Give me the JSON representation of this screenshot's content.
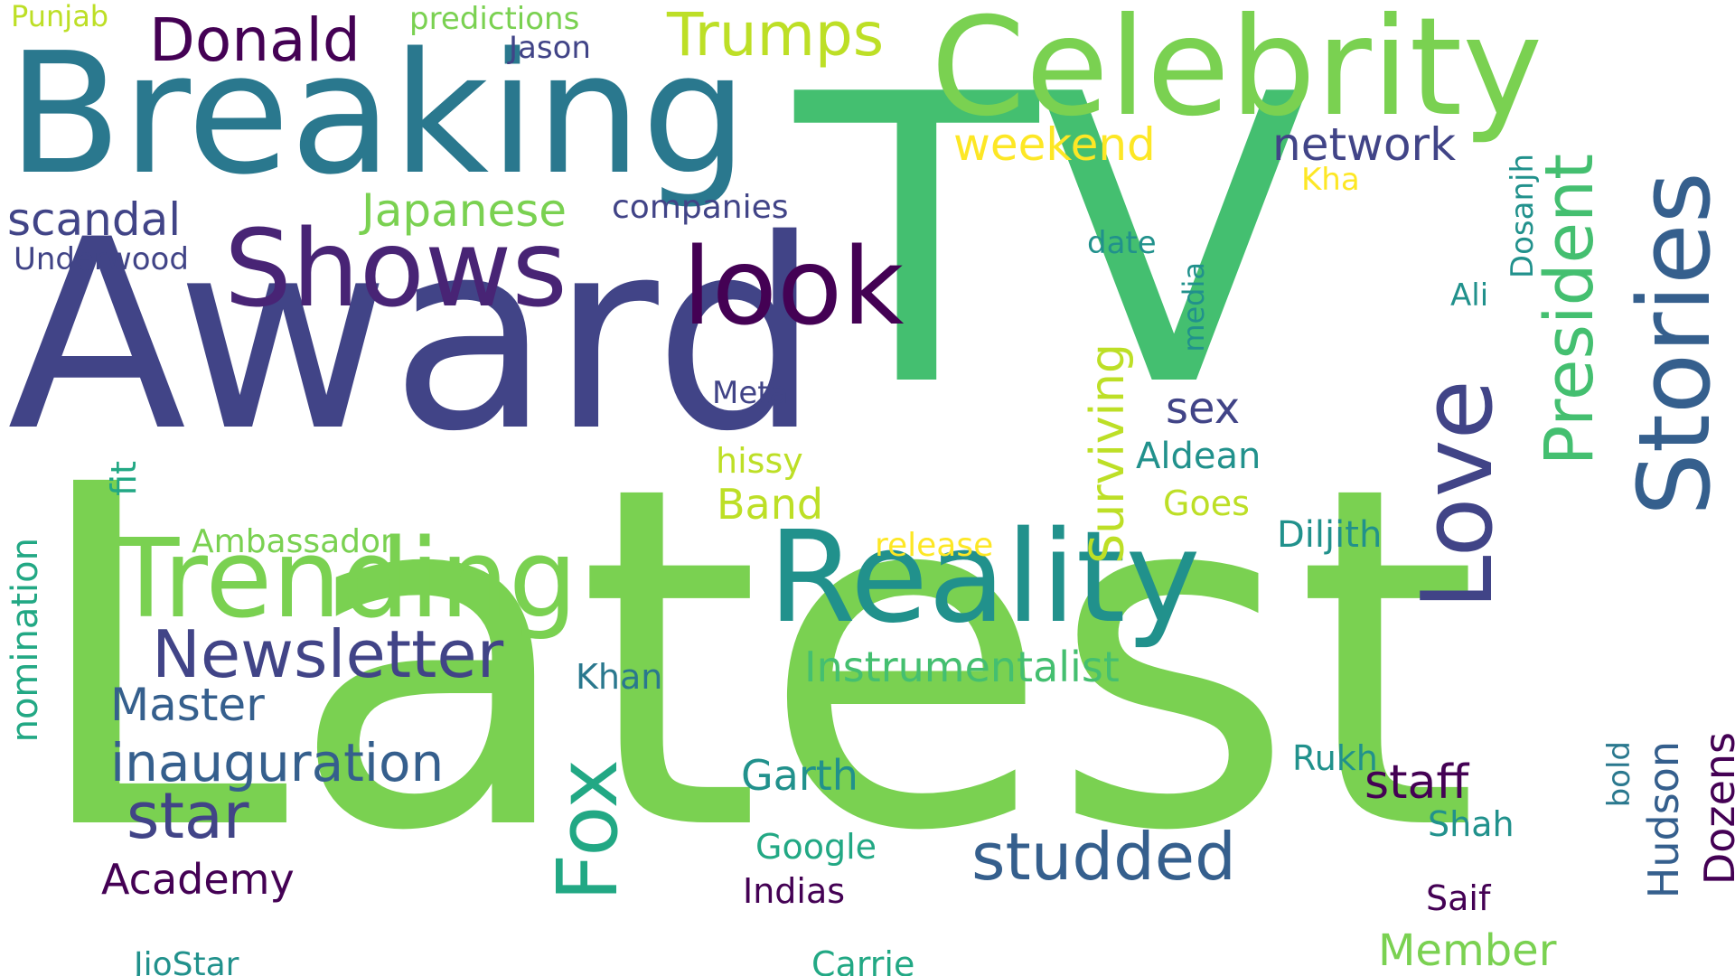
{
  "words": {
    "latest": "Latest",
    "award": "Award",
    "tv": "TV",
    "breaking": "Breaking",
    "celebrity": "Celebrity",
    "reality": "Reality",
    "trending": "Trending",
    "shows": "Shows",
    "look": "look",
    "stories": "Stories",
    "love": "Love",
    "fox": "Fox",
    "president": "President",
    "newsletter": "Newsletter",
    "studded": "studded",
    "donald": "Donald",
    "trumps": "Trumps",
    "star": "star",
    "inauguration": "inauguration",
    "surviving": "Surviving",
    "member": "Member",
    "master": "Master",
    "japanese": "Japanese",
    "scandal": "scandal",
    "network": "network",
    "weekend": "weekend",
    "instrumentalist": "Instrumentalist",
    "staff": "staff",
    "dozens": "Dozens",
    "hudson": "Hudson",
    "academy": "Academy",
    "garth": "Garth",
    "band": "Band",
    "nomination": "nomination",
    "sex": "sex",
    "aldean": "Aldean",
    "diljith": "Diljith",
    "underwood": "Underwood",
    "companies": "companies",
    "predictions": "predictions",
    "jason": "Jason",
    "punjab": "Punjab",
    "date": "date",
    "dosanjh": "Dosanjh",
    "kha": "Kha",
    "ali": "Ali",
    "media": "media",
    "meta": "Meta",
    "hissy": "hissy",
    "fit": "fit",
    "goes": "Goes",
    "release": "release",
    "ambassador": "Ambassador",
    "khan": "Khan",
    "rukh": "Rukh",
    "shah": "Shah",
    "bold": "bold",
    "google": "Google",
    "indias": "Indias",
    "saif": "Saif",
    "jiostar": "JioStar",
    "carrie": "Carrie"
  },
  "colors": {
    "background": "#ffffff",
    "palette": [
      "#440154",
      "#482475",
      "#414487",
      "#355f8d",
      "#2a788e",
      "#21918c",
      "#22a884",
      "#44bf70",
      "#7ad151",
      "#bddf26",
      "#fde725"
    ]
  }
}
